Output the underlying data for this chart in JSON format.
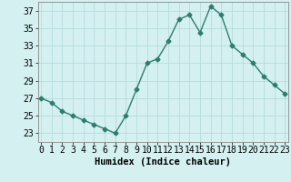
{
  "x": [
    0,
    1,
    2,
    3,
    4,
    5,
    6,
    7,
    8,
    9,
    10,
    11,
    12,
    13,
    14,
    15,
    16,
    17,
    18,
    19,
    20,
    21,
    22,
    23
  ],
  "y": [
    27,
    26.5,
    25.5,
    25,
    24.5,
    24,
    23.5,
    23,
    25,
    28,
    31,
    31.5,
    33.5,
    36,
    36.5,
    34.5,
    37.5,
    36.5,
    33,
    32,
    31,
    29.5,
    28.5,
    27.5
  ],
  "line_color": "#2e7d6e",
  "marker": "D",
  "marker_size": 2.5,
  "bg_color": "#d4f0f0",
  "grid_color": "#b0d8d8",
  "xlabel": "Humidex (Indice chaleur)",
  "xlabel_fontsize": 7.5,
  "tick_fontsize": 7,
  "ylim": [
    22,
    38
  ],
  "yticks": [
    23,
    25,
    27,
    29,
    31,
    33,
    35,
    37
  ],
  "xticks": [
    0,
    1,
    2,
    3,
    4,
    5,
    6,
    7,
    8,
    9,
    10,
    11,
    12,
    13,
    14,
    15,
    16,
    17,
    18,
    19,
    20,
    21,
    22,
    23
  ],
  "xlim": [
    -0.3,
    23.3
  ]
}
